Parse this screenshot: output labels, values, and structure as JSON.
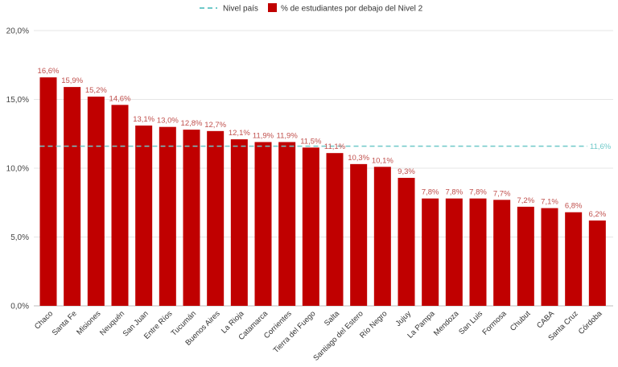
{
  "chart_data": {
    "type": "bar",
    "categories": [
      "Chaco",
      "Santa Fe",
      "Misiones",
      "Neuquén",
      "San Juan",
      "Entre Ríos",
      "Tucumán",
      "Buenos Aires",
      "La Rioja",
      "Catamarca",
      "Corrientes",
      "Tierra del Fuego",
      "Salta",
      "Santiago del Estero",
      "Río Negro",
      "Jujuy",
      "La Pampa",
      "Mendoza",
      "San Luis",
      "Formosa",
      "Chubut",
      "CABA",
      "Santa Cruz",
      "Córdoba"
    ],
    "values": [
      16.6,
      15.9,
      15.2,
      14.6,
      13.1,
      13.0,
      12.8,
      12.7,
      12.1,
      11.9,
      11.9,
      11.5,
      11.1,
      10.3,
      10.1,
      9.3,
      7.8,
      7.8,
      7.8,
      7.7,
      7.2,
      7.1,
      6.8,
      6.2
    ],
    "value_labels": [
      "16,6%",
      "15,9%",
      "15,2%",
      "14,6%",
      "13,1%",
      "13,0%",
      "12,8%",
      "12,7%",
      "12,1%",
      "11,9%",
      "11,9%",
      "11,5%",
      "11,1%",
      "10,3%",
      "10,1%",
      "9,3%",
      "7,8%",
      "7,8%",
      "7,8%",
      "7,7%",
      "7,2%",
      "7,1%",
      "6,8%",
      "6,2%"
    ],
    "series_name": "% de estudiantes por debajo del Nivel 2",
    "reference_line": {
      "name": "Nivel país",
      "value": 11.6,
      "label": "11,6%"
    },
    "y_ticks": [
      0,
      5,
      10,
      15,
      20
    ],
    "y_tick_labels": [
      "0,0%",
      "5,0%",
      "10,0%",
      "15,0%",
      "20,0%"
    ],
    "ylim": [
      0,
      20
    ],
    "title": "",
    "xlabel": "",
    "ylabel": "",
    "grid": true,
    "legend_position": "top-center",
    "colors": {
      "bar": "#c00000",
      "reference": "#6fc9c9",
      "label": "#c0504d",
      "grid": "#e6e6e6"
    }
  }
}
